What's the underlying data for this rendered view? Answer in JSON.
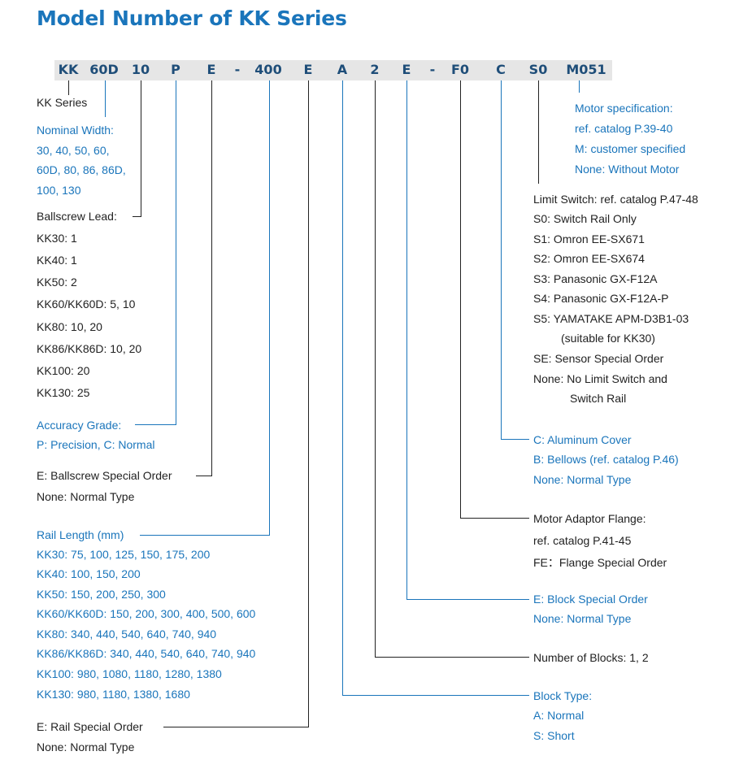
{
  "title": "Model Number of KK Series",
  "code_segments": [
    "KK",
    "60D",
    "10",
    "P",
    "E",
    "-",
    "400",
    "E",
    "A",
    "2",
    "E",
    "-",
    "F0",
    "C",
    "S0",
    "M051"
  ],
  "left": {
    "kk_series": "KK Series",
    "nominal_width": {
      "title": "Nominal Width:",
      "lines": [
        "30, 40, 50, 60,",
        "60D, 80, 86, 86D,",
        "100, 130"
      ]
    },
    "ballscrew_lead": {
      "title": "Ballscrew Lead:",
      "lines": [
        "KK30: 1",
        "KK40: 1",
        "KK50: 2",
        "KK60/KK60D: 5, 10",
        "KK80: 10, 20",
        "KK86/KK86D: 10, 20",
        "KK100: 20",
        "KK130: 25"
      ]
    },
    "accuracy_grade": {
      "title": "Accuracy Grade:",
      "lines": [
        "P: Precision, C: Normal"
      ]
    },
    "ballscrew_special": {
      "title": "E:  Ballscrew Special Order",
      "lines": [
        "None: Normal Type"
      ]
    },
    "rail_length": {
      "title": "Rail Length (mm)",
      "lines": [
        "KK30: 75, 100, 125, 150, 175, 200",
        "KK40: 100, 150, 200",
        "KK50: 150, 200, 250, 300",
        "KK60/KK60D: 150, 200, 300,  400,  500, 600",
        "KK80: 340, 440, 540, 640, 740, 940",
        "KK86/KK86D: 340, 440, 540, 640, 740, 940",
        "KK100: 980, 1080, 1180, 1280, 1380",
        "KK130: 980, 1180, 1380, 1680"
      ]
    },
    "rail_special": {
      "title": "E: Rail Special Order",
      "lines": [
        "None: Normal Type"
      ]
    }
  },
  "right": {
    "motor_spec": {
      "lines": [
        "Motor specification:",
        "ref. catalog P.39-40",
        "M: customer specified",
        "None: Without Motor"
      ]
    },
    "limit_switch": {
      "title": "Limit Switch: ref. catalog P.47-48",
      "lines": [
        "S0: Switch Rail Only",
        "S1: Omron EE-SX671",
        "S2: Omron EE-SX674",
        "S3: Panasonic GX-F12A",
        "S4: Panasonic GX-F12A-P",
        "S5: YAMATAKE APM-D3B1-03",
        "(suitable for KK30)",
        "SE: Sensor Special Order",
        "None: No Limit Switch and",
        "Switch Rail"
      ]
    },
    "cover": {
      "lines": [
        "C: Aluminum Cover",
        "B: Bellows (ref. catalog P.46)",
        "None: Normal Type"
      ]
    },
    "motor_adaptor": {
      "title": "Motor Adaptor Flange:",
      "lines": [
        "ref. catalog P.41-45",
        "FE：Flange Special Order"
      ]
    },
    "block_special": {
      "title": "E: Block Special Order",
      "lines": [
        "None: Normal Type"
      ]
    },
    "num_blocks": {
      "title": "Number of Blocks: 1, 2"
    },
    "block_type": {
      "title": "Block Type:",
      "lines": [
        "A: Normal",
        "S: Short"
      ]
    }
  },
  "colors": {
    "title_blue": "#1a75bb",
    "code_text": "#1f4e79",
    "code_bar": "#e6e6e6",
    "blue_text": "#1a75bb",
    "black_text": "#222222",
    "blue_line": "#1a75bb",
    "black_line": "#222222"
  }
}
